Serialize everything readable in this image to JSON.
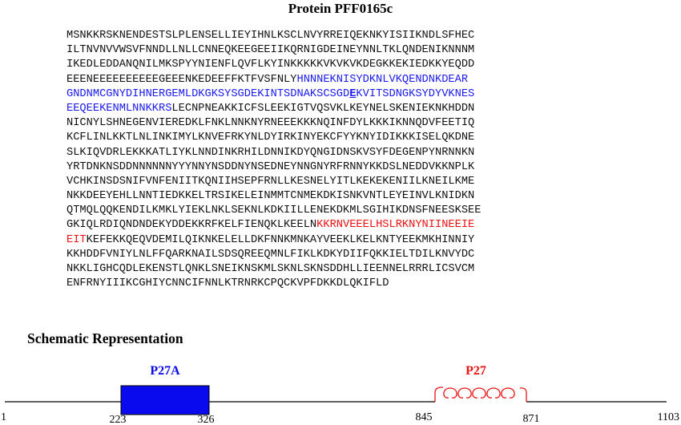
{
  "title": "Protein PFF0165c",
  "sequence_lines": [
    [
      {
        "t": "MSNKKRSKNENDESTSLPLENSELLIEYIHNLKSCLNVYRREIQEKNKYISIIKNDLSFHEC"
      }
    ],
    [
      {
        "t": "ILTNVNVVWSVFNNDLLNLLCNNEQKEEGEEIIKQRNIGDEINEYNNLTKLQNDENIKNNNM"
      }
    ],
    [
      {
        "t": "IKEDLEDDANQNILMKSPYYNIENFLQVFLKYINKKKKKVKVKVKDEGKKEKIEDKKYEQDD"
      }
    ],
    [
      {
        "t": "EEENEEEEEEEEEEGEEENKEDEEFFKTFVSFNLY"
      },
      {
        "t": "HNNNEKNISYDKNLVKQENDNKDEAR",
        "c": "blue"
      }
    ],
    [
      {
        "t": "GNDNMCGNYDIHNERGEMLDKGKSYSGDEKINTSDNAKSCSGD",
        "c": "blue"
      },
      {
        "t": "E",
        "c": "mark"
      },
      {
        "t": "KVITSDNGKSYDYVKNES",
        "c": "blue"
      }
    ],
    [
      {
        "t": "EEQEEKENMLNNKKRS",
        "c": "blue"
      },
      {
        "t": "LECNPNEAKKICFSLEEKIGTVQSVKLKEYNELSKENIEKNKHDDN"
      }
    ],
    [
      {
        "t": "NICNYLSHNEGENVIEREDKLFNKLNNKNYRNEEEKKKNQINFDYLKKKIKNNQDVFEETIQ"
      }
    ],
    [
      {
        "t": "KCFLINLKKTLNLINKIMYLKNVEFRKYNLDYIRKINYEKCFYYKNYIDIKKKISELQKDNE"
      }
    ],
    [
      {
        "t": "SLKIQVDRLEKKKATLIYKLNNDINKRHILDNNIKDYQNGIDNSKVSYFDEGENPYNRNNKN"
      }
    ],
    [
      {
        "t": "YRTDNKNSDDNNNNNNYYYNNYNSDDNYNSEDNEYNNGNYRFRNNYKKDSLNEDDVKKNPLK"
      }
    ],
    [
      {
        "t": "VCHKINSDSNIFVNFENIITKQNIIHSEPFRNLLKESNELYITLKEKEKENIILKNEILKME"
      }
    ],
    [
      {
        "t": "NKKDEEYEHLLNNTIEDKKELTRSIKELEINMMTCNMEKDKISNKVNTLEYEINVLKNIDKN"
      }
    ],
    [
      {
        "t": "QTMQLQQKENDILKMKLYIEKLNKLSEKNLKDKIILLENEKDKMLSGIHIKDNSFNEESKSEE"
      }
    ],
    [
      {
        "t": "GKIQLRDIQNDNDEKYDDEKKRFKELFIENQKLKEELN"
      },
      {
        "t": "KKRNVEEELHSLRKNYNIINEEIE",
        "c": "red"
      }
    ],
    [
      {
        "t": "EIT",
        "c": "red"
      },
      {
        "t": "KEFEKKQEQVDEMILQIKNKELELLDKFNNKMNKAYVEEKLKELKNTYEEKMKHINNIY"
      }
    ],
    [
      {
        "t": "KKHDDFVNIYLNLFFQARKNAILSDSQREEQMNLFIKLKDKYDIIFQKKIELTDILKNVYDC"
      }
    ],
    [
      {
        "t": "NKKLIGHCQDLEKENSTLQNKLSNEIKNSKMLSKNLSKNSDDHLLIEENNELRRRLICSVCM"
      }
    ],
    [
      {
        "t": "ENFRNYIIIKCGHIYCNNCIFNNLKTRNRKCPQCKVPFDKKDLQKIFLD"
      }
    ]
  ],
  "schematic": {
    "title": "Schematic Representation",
    "p27a_label": "P27A",
    "p27_label": "P27",
    "start_label": "1",
    "p27a_start": "223",
    "p27a_end": "326",
    "p27_start": "845",
    "p27_end": "871",
    "end_label": "1103",
    "colors": {
      "p27a": "#0a0aee",
      "p27": "#ee1111",
      "line": "#000000"
    }
  }
}
